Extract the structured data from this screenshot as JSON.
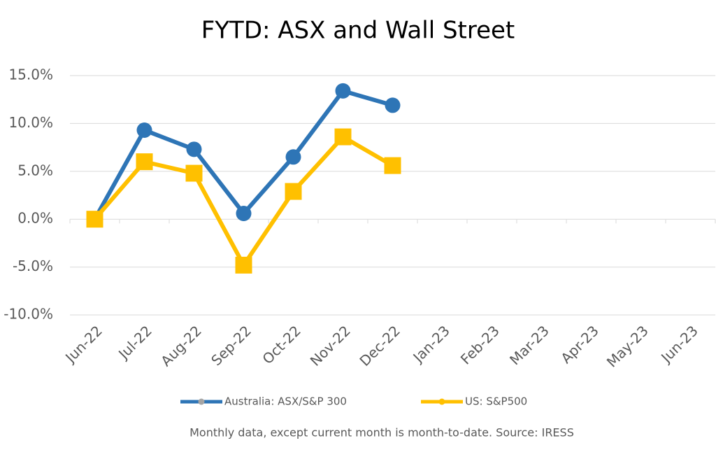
{
  "chart_data": {
    "type": "line",
    "title": "FYTD: ASX and Wall Street",
    "note": "Monthly data, except current month is month-to-date.  Source: IRESS",
    "categories": [
      "Jun-22",
      "Jul-22",
      "Aug-22",
      "Sep-22",
      "Oct-22",
      "Nov-22",
      "Dec-22",
      "Jan-23",
      "Feb-23",
      "Mar-23",
      "Apr-23",
      "May-23",
      "Jun-23"
    ],
    "series": [
      {
        "name": "Australia: ASX/S&P 300",
        "color": "#2e75b6",
        "marker": "circle",
        "values": [
          0,
          9.3,
          7.3,
          0.6,
          6.5,
          13.4,
          11.9,
          null,
          null,
          null,
          null,
          null,
          null
        ]
      },
      {
        "name": "US: S&P500",
        "color": "#ffc000",
        "marker": "square",
        "values": [
          0,
          6.0,
          4.8,
          -4.8,
          2.9,
          8.6,
          5.6,
          null,
          null,
          null,
          null,
          null,
          null
        ]
      }
    ],
    "ylim": [
      -10,
      15
    ],
    "yticks": [
      {
        "value": -10,
        "label": "-10.0%"
      },
      {
        "value": -5,
        "label": "-5.0%"
      },
      {
        "value": 0,
        "label": "0.0%"
      },
      {
        "value": 5,
        "label": "5.0%"
      },
      {
        "value": 10,
        "label": "10.0%"
      },
      {
        "value": 15,
        "label": "15.0%"
      }
    ],
    "grid": true,
    "legend": "bottom"
  }
}
